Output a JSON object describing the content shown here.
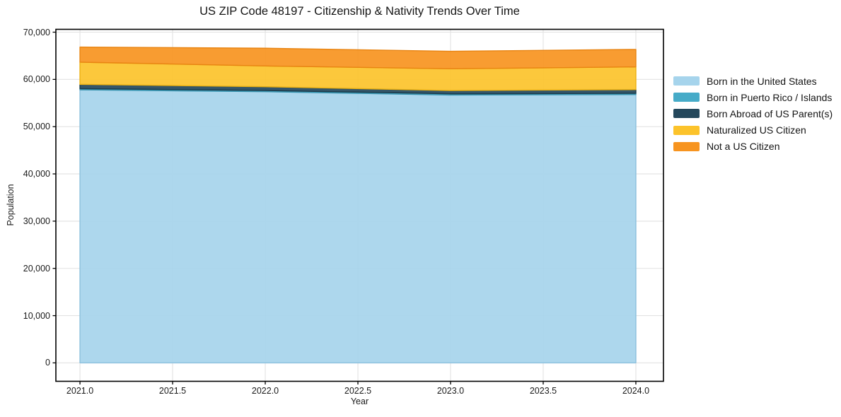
{
  "chart_data": {
    "type": "area",
    "stacked": true,
    "title": "US ZIP Code 48197 - Citizenship & Nativity Trends Over Time",
    "xlabel": "Year",
    "ylabel": "Population",
    "x": [
      2021,
      2022,
      2023,
      2024
    ],
    "series": [
      {
        "name": "Born in the United States",
        "color": "#a6d4ec",
        "edge": "#8cc0dd",
        "values": [
          57800,
          57400,
          56700,
          56800
        ]
      },
      {
        "name": "Born in Puerto Rico / Islands",
        "color": "#46abc8",
        "edge": "#3794b0",
        "values": [
          250,
          250,
          250,
          250
        ]
      },
      {
        "name": "Born Abroad of US Parent(s)",
        "color": "#24485c",
        "edge": "#1a3948",
        "values": [
          900,
          800,
          700,
          800
        ]
      },
      {
        "name": "Naturalized US Citizen",
        "color": "#fcc32b",
        "edge": "#ecb112",
        "values": [
          4700,
          4400,
          4600,
          4800
        ]
      },
      {
        "name": "Not a US Citizen",
        "color": "#f7941f",
        "edge": "#e88412",
        "values": [
          3200,
          3750,
          3700,
          3700
        ]
      }
    ],
    "xticks": [
      "2021.0",
      "2021.5",
      "2022.0",
      "2022.5",
      "2023.0",
      "2023.5",
      "2024.0"
    ],
    "xtick_values": [
      2021,
      2021.5,
      2022,
      2022.5,
      2023,
      2023.5,
      2024
    ],
    "yticks": [
      "0",
      "10,000",
      "20,000",
      "30,000",
      "40,000",
      "50,000",
      "60,000",
      "70,000"
    ],
    "ytick_values": [
      0,
      10000,
      20000,
      30000,
      40000,
      50000,
      60000,
      70000
    ],
    "xlim": [
      2020.87,
      2024.149
    ],
    "ylim": [
      -3900,
      70600
    ],
    "grid": true,
    "grid_color": "#e2e2e2",
    "spine_color": "#000000",
    "legend_position": "right of plot, frameless"
  }
}
